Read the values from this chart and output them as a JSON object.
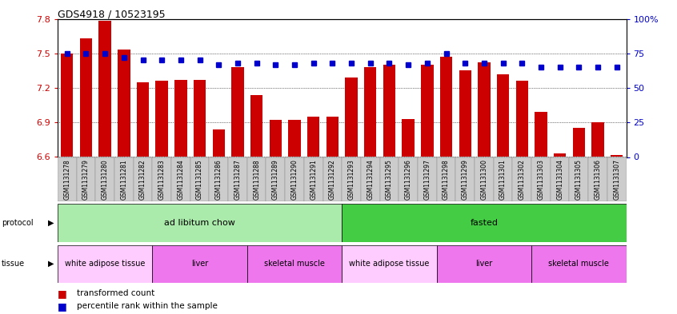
{
  "title": "GDS4918 / 10523195",
  "samples": [
    "GSM1131278",
    "GSM1131279",
    "GSM1131280",
    "GSM1131281",
    "GSM1131282",
    "GSM1131283",
    "GSM1131284",
    "GSM1131285",
    "GSM1131286",
    "GSM1131287",
    "GSM1131288",
    "GSM1131289",
    "GSM1131290",
    "GSM1131291",
    "GSM1131292",
    "GSM1131293",
    "GSM1131294",
    "GSM1131295",
    "GSM1131296",
    "GSM1131297",
    "GSM1131298",
    "GSM1131299",
    "GSM1131300",
    "GSM1131301",
    "GSM1131302",
    "GSM1131303",
    "GSM1131304",
    "GSM1131305",
    "GSM1131306",
    "GSM1131307"
  ],
  "transformed_count": [
    7.5,
    7.63,
    7.78,
    7.53,
    7.25,
    7.26,
    7.27,
    7.27,
    6.84,
    7.38,
    7.14,
    6.92,
    6.92,
    6.95,
    6.95,
    7.29,
    7.38,
    7.4,
    6.93,
    7.4,
    7.47,
    7.35,
    7.42,
    7.32,
    7.26,
    6.99,
    6.63,
    6.85,
    6.9,
    6.62
  ],
  "percentile_rank": [
    75,
    75,
    75,
    72,
    70,
    70,
    70,
    70,
    67,
    68,
    68,
    67,
    67,
    68,
    68,
    68,
    68,
    68,
    67,
    68,
    75,
    68,
    68,
    68,
    68,
    65,
    65,
    65,
    65,
    65
  ],
  "ylim_left": [
    6.6,
    7.8
  ],
  "ylim_right": [
    0,
    100
  ],
  "yticks_left": [
    6.6,
    6.9,
    7.2,
    7.5,
    7.8
  ],
  "yticks_right": [
    0,
    25,
    50,
    75,
    100
  ],
  "bar_color": "#cc0000",
  "dot_color": "#0000cc",
  "bar_bottom": 6.6,
  "protocol_groups": [
    {
      "label": "ad libitum chow",
      "start": 0,
      "end": 15,
      "color": "#aaeaaa"
    },
    {
      "label": "fasted",
      "start": 15,
      "end": 30,
      "color": "#44cc44"
    }
  ],
  "tissue_groups": [
    {
      "label": "white adipose tissue",
      "start": 0,
      "end": 5,
      "color": "#ffccff"
    },
    {
      "label": "liver",
      "start": 5,
      "end": 10,
      "color": "#ee77ee"
    },
    {
      "label": "skeletal muscle",
      "start": 10,
      "end": 15,
      "color": "#ee77ee"
    },
    {
      "label": "white adipose tissue",
      "start": 15,
      "end": 20,
      "color": "#ffccff"
    },
    {
      "label": "liver",
      "start": 20,
      "end": 25,
      "color": "#ee77ee"
    },
    {
      "label": "skeletal muscle",
      "start": 25,
      "end": 30,
      "color": "#ee77ee"
    }
  ],
  "xtick_bg_color": "#cccccc",
  "bg_color": "#ffffff",
  "tick_label_color_left": "#cc0000",
  "tick_label_color_right": "#0000cc"
}
